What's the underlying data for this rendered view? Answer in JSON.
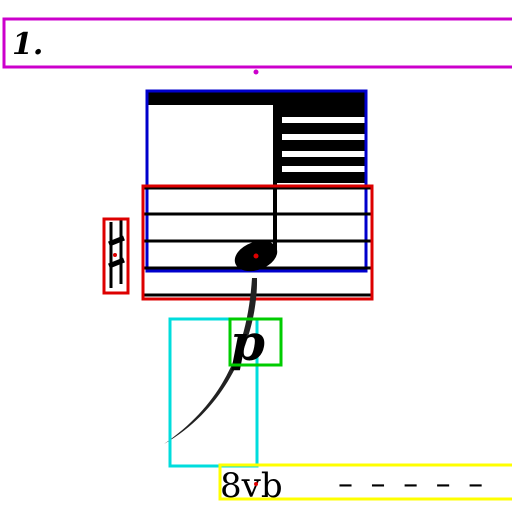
{
  "score": {
    "volta_label": "1.",
    "dynamic_label": "p",
    "octave_label": "8vb",
    "octave_dashes": "– – – – –"
  },
  "box_colors": {
    "volta": "#cc00cc",
    "beam_region": "#0000cc",
    "note_region": "#dd0000",
    "accidental": "#dd0000",
    "dynamic": "#00cc00",
    "slur": "#00dddd",
    "octave": "#ffff00",
    "center_marker": "#dd0000"
  }
}
